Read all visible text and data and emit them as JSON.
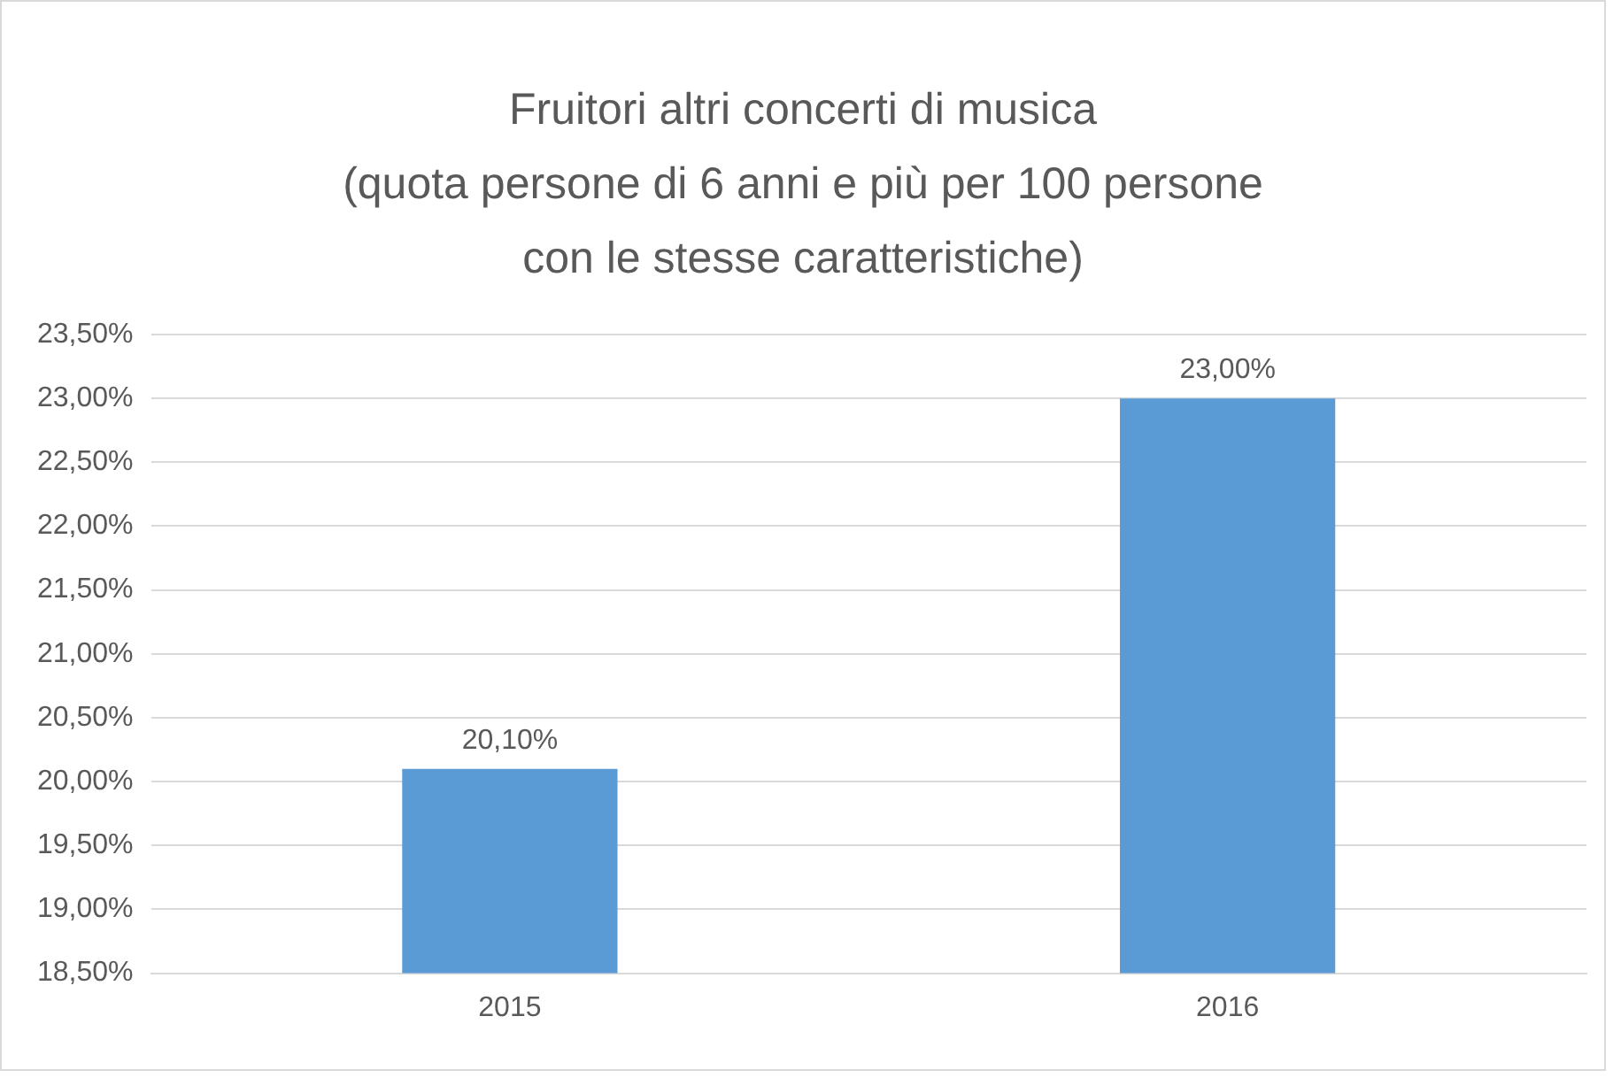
{
  "chart_data": {
    "type": "bar",
    "title": "Fruitori altri concerti di musica\n(quota persone di 6 anni e più per 100 persone\ncon le stesse caratteristiche)",
    "categories": [
      "2015",
      "2016"
    ],
    "values": [
      20.1,
      23.0
    ],
    "value_labels": [
      "20,10%",
      "23,00%"
    ],
    "color": "#5b9bd5",
    "ylim": [
      18.5,
      23.5
    ],
    "yticks": [
      {
        "value": 18.5,
        "label": "18,50%"
      },
      {
        "value": 19,
        "label": "19,00%"
      },
      {
        "value": 19.5,
        "label": "19,50%"
      },
      {
        "value": 20,
        "label": "20,00%"
      },
      {
        "value": 20.5,
        "label": "20,50%"
      },
      {
        "value": 21,
        "label": "21,00%"
      },
      {
        "value": 21.5,
        "label": "21,50%"
      },
      {
        "value": 22,
        "label": "22,00%"
      },
      {
        "value": 22.5,
        "label": "22,50%"
      },
      {
        "value": 23,
        "label": "23,00%"
      },
      {
        "value": 23.5,
        "label": "23,50%"
      }
    ],
    "grid": "y"
  }
}
